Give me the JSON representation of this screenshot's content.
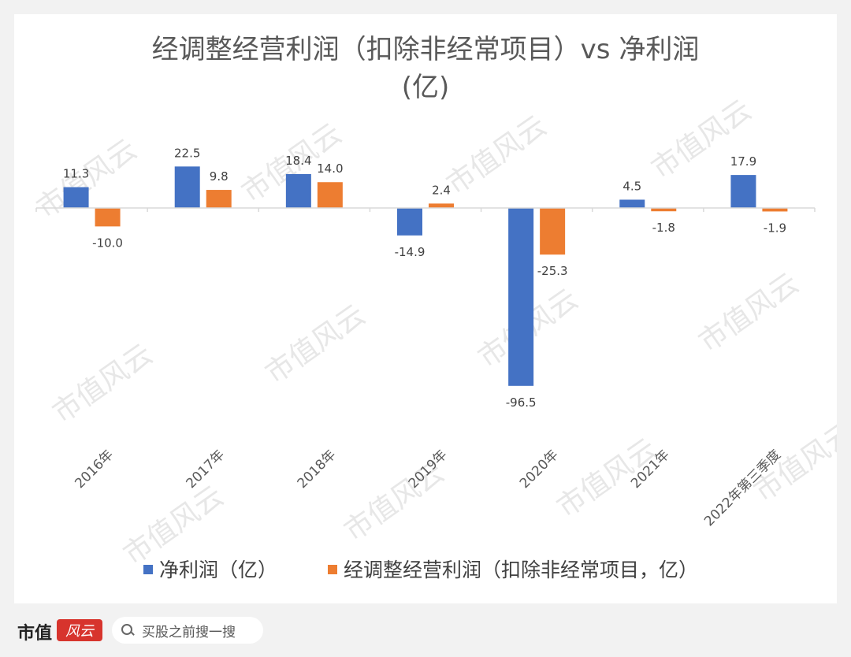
{
  "chart_data": {
    "type": "bar",
    "title_line1": "经调整经营利润（扣除非经常项目）vs 净利润",
    "title_line2": "(亿)",
    "categories": [
      "2016年",
      "2017年",
      "2018年",
      "2019年",
      "2020年",
      "2021年",
      "2022年第三季度"
    ],
    "series": [
      {
        "name": "净利润（亿）",
        "color": "#4472c4",
        "values": [
          11.3,
          22.5,
          18.4,
          -14.9,
          -96.5,
          4.5,
          17.9
        ]
      },
      {
        "name": "经调整经营利润（扣除非经常项目，亿）",
        "color": "#ed7d31",
        "values": [
          -10.0,
          9.8,
          14.0,
          2.4,
          -25.3,
          -1.8,
          -1.9
        ]
      }
    ],
    "data_labels": [
      [
        "11.3",
        "22.5",
        "18.4",
        "-14.9",
        "-96.5",
        "4.5",
        "17.9"
      ],
      [
        "-10.0",
        "9.8",
        "14.0",
        "2.4",
        "-25.3",
        "-1.8",
        "-1.9"
      ]
    ],
    "grid": false,
    "legend_position": "bottom"
  },
  "watermark": "市值风云",
  "footer": {
    "logo_text": "市值",
    "logo_badge": "风云",
    "search_placeholder": "买股之前搜一搜"
  }
}
